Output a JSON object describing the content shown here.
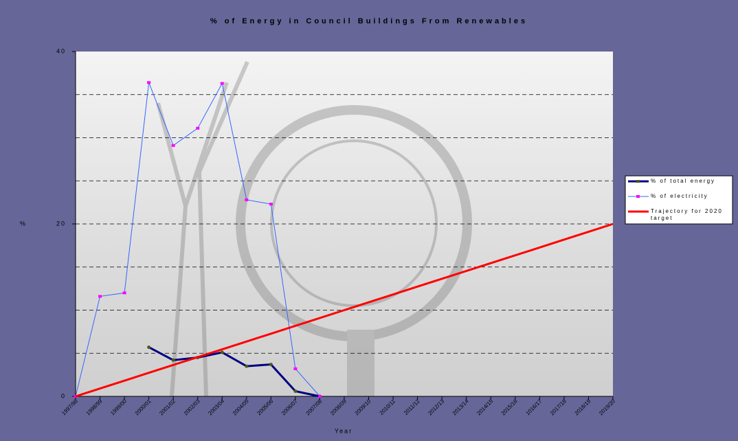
{
  "chart_data": {
    "type": "line",
    "title": "% of Energy in Council Buildings From Renewables",
    "x_label": "Year",
    "y_label": "%",
    "categories": [
      "1997/98",
      "1998/99",
      "1999/00",
      "2000/01",
      "2001/02",
      "2002/03",
      "2003/04",
      "2004/05",
      "2005/06",
      "2006/07",
      "2007/08",
      "2008/09",
      "2009/10",
      "2010/11",
      "2011/12",
      "2012/13",
      "2013/14",
      "2014/15",
      "2015/16",
      "1016/17",
      "2017/18",
      "2018/19",
      "2019/20"
    ],
    "series": [
      {
        "name": "% of total energy",
        "color": "#000080",
        "marker_color": "#4d5a1a",
        "width": 3,
        "values": [
          null,
          null,
          null,
          5.7,
          4.2,
          4.5,
          5.1,
          3.5,
          3.7,
          0.6,
          0,
          null,
          null,
          null,
          null,
          null,
          null,
          null,
          null,
          null,
          null,
          null,
          null
        ]
      },
      {
        "name": "% of electricity",
        "color": "#3366ff",
        "marker_color": "#ff00ff",
        "width": 1,
        "values": [
          0,
          11.6,
          12.0,
          36.4,
          29.1,
          31.1,
          36.3,
          22.8,
          22.3,
          3.2,
          0,
          null,
          null,
          null,
          null,
          null,
          null,
          null,
          null,
          null,
          null,
          null,
          null
        ]
      },
      {
        "name": "Trajectory for 2020 target",
        "color": "#ff0000",
        "width": 3,
        "values": [
          0,
          0.91,
          1.82,
          2.73,
          3.64,
          4.55,
          5.45,
          6.36,
          7.27,
          8.18,
          9.09,
          10,
          10.91,
          11.82,
          12.73,
          13.64,
          14.55,
          15.45,
          16.36,
          17.27,
          18.18,
          19.09,
          20
        ]
      }
    ],
    "ylim": [
      0,
      40
    ],
    "yticks": [
      0,
      20,
      40
    ],
    "ygrid": [
      5,
      10,
      15,
      20,
      25,
      30,
      35
    ],
    "legend": "right"
  }
}
